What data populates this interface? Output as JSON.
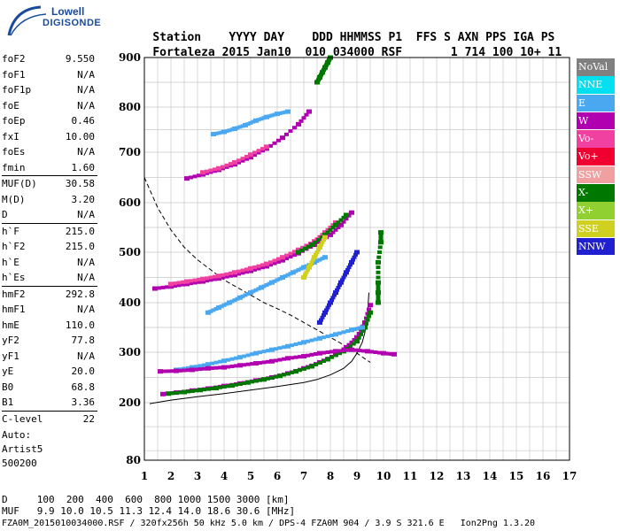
{
  "logo": {
    "line1": "Lowell",
    "line2": "DIGISONDE"
  },
  "header": {
    "labels": [
      "Station",
      "YYYY",
      "DAY",
      "DDD",
      "HHMMSS",
      "P1",
      "FFS",
      "S",
      "AXN",
      "PPS",
      "IGA",
      "PS"
    ],
    "values": [
      "Fortaleza",
      "2015",
      "Jan10",
      "010",
      "034000",
      "RSF",
      "1",
      "714",
      "100",
      "10+",
      "11"
    ]
  },
  "params": [
    {
      "name": "foF2",
      "value": "9.550"
    },
    {
      "name": "foF1",
      "value": "N/A"
    },
    {
      "name": "foF1p",
      "value": "N/A"
    },
    {
      "name": "foE",
      "value": "N/A"
    },
    {
      "name": "foEp",
      "value": "0.46"
    },
    {
      "name": "fxI",
      "value": "10.00"
    },
    {
      "name": "foEs",
      "value": "N/A"
    },
    {
      "name": "fmin",
      "value": "1.60"
    },
    {
      "name": "MUF(D)",
      "value": "30.58"
    },
    {
      "name": "M(D)",
      "value": "3.20"
    },
    {
      "name": "D",
      "value": "N/A"
    },
    {
      "name": "h`F",
      "value": "215.0"
    },
    {
      "name": "h`F2",
      "value": "215.0"
    },
    {
      "name": "h`E",
      "value": "N/A"
    },
    {
      "name": "h`Es",
      "value": "N/A"
    },
    {
      "name": "hmF2",
      "value": "292.8"
    },
    {
      "name": "hmF1",
      "value": "N/A"
    },
    {
      "name": "hmE",
      "value": "110.0"
    },
    {
      "name": "yF2",
      "value": "77.8"
    },
    {
      "name": "yF1",
      "value": "N/A"
    },
    {
      "name": "yE",
      "value": "20.0"
    },
    {
      "name": "B0",
      "value": "68.8"
    },
    {
      "name": "B1",
      "value": "3.36"
    },
    {
      "name": "C-level",
      "value": "22"
    }
  ],
  "auto": {
    "line1": "Auto:",
    "line2": "Artist5",
    "line3": "500200"
  },
  "legend": [
    {
      "label": "NoVal",
      "color": "#808080"
    },
    {
      "label": "NNE",
      "color": "#00e0f0"
    },
    {
      "label": "E",
      "color": "#4aa8f0"
    },
    {
      "label": "W",
      "color": "#b000b0"
    },
    {
      "label": "Vo-",
      "color": "#f040a0"
    },
    {
      "label": "Vo+",
      "color": "#f00030"
    },
    {
      "label": "SSW",
      "color": "#f0a0a0"
    },
    {
      "label": "X-",
      "color": "#007800"
    },
    {
      "label": "X+",
      "color": "#90d030"
    },
    {
      "label": "SSE",
      "color": "#d0d020"
    },
    {
      "label": "NNW",
      "color": "#2020d0"
    }
  ],
  "footer": {
    "d_row": "D     100  200  400  600  800 1000 1500 3000 [km]",
    "muf_row": "MUF   9.9 10.0 10.5 11.3 12.4 14.0 18.6 30.6 [MHz]",
    "info": "FZA0M_2015010034000.RSF / 320fx256h 50 kHz 5.0 km / DPS-4 FZA0M 904 / 3.9 S 321.6 E   Ion2Png 1.3.20"
  },
  "chart_data": {
    "type": "scatter",
    "xlim": [
      1,
      17
    ],
    "ylim": [
      80,
      900
    ],
    "x_ticks": [
      "1",
      "2",
      "3",
      "4",
      "5",
      "6",
      "7",
      "8",
      "9",
      "10",
      "11",
      "12",
      "13",
      "14",
      "15",
      "16",
      "17"
    ],
    "y_ticks": [
      "80",
      "200",
      "300",
      "400",
      "500",
      "600",
      "700",
      "800",
      "900"
    ],
    "series": [
      {
        "color": "#b000b0",
        "x": [
          1.7,
          2.2,
          2.8,
          3.4,
          4.0,
          4.6,
          5.2,
          5.8,
          6.4,
          7.0,
          7.6,
          8.2,
          8.6,
          9.0,
          9.3,
          9.5
        ],
        "y": [
          217,
          220,
          224,
          228,
          233,
          238,
          244,
          250,
          258,
          268,
          280,
          295,
          310,
          330,
          360,
          395
        ]
      },
      {
        "color": "#007800",
        "x": [
          1.9,
          2.5,
          3.1,
          3.7,
          4.3,
          4.9,
          5.5,
          6.1,
          6.7,
          7.3,
          7.9,
          8.5,
          9.0,
          9.3,
          9.5
        ],
        "y": [
          218,
          221,
          225,
          229,
          234,
          240,
          246,
          253,
          262,
          272,
          286,
          302,
          322,
          350,
          380
        ]
      },
      {
        "color": "#b000b0",
        "x": [
          1.4,
          2.0,
          2.6,
          3.2,
          3.8,
          4.4,
          5.0,
          5.6,
          6.2,
          6.8,
          7.4,
          8.0,
          8.4,
          8.8
        ],
        "y": [
          428,
          432,
          437,
          442,
          448,
          455,
          463,
          472,
          484,
          498,
          515,
          535,
          555,
          580
        ]
      },
      {
        "color": "#f040a0",
        "x": [
          2.0,
          2.6,
          3.2,
          3.8,
          4.4,
          5.0,
          5.6,
          6.2,
          6.8,
          7.4,
          7.8,
          8.2
        ],
        "y": [
          437,
          442,
          447,
          453,
          460,
          468,
          477,
          490,
          505,
          522,
          540,
          560
        ]
      },
      {
        "color": "#007800",
        "x": [
          6.8,
          7.3,
          7.8,
          8.2,
          8.6
        ],
        "y": [
          500,
          515,
          535,
          555,
          575
        ]
      },
      {
        "color": "#b000b0",
        "x": [
          2.6,
          3.2,
          3.8,
          4.4,
          5.0,
          5.6,
          6.2,
          6.8,
          7.2
        ],
        "y": [
          648,
          656,
          665,
          676,
          690,
          708,
          732,
          762,
          790
        ]
      },
      {
        "color": "#f040a0",
        "x": [
          3.2,
          3.8,
          4.4,
          5.0,
          5.6
        ],
        "y": [
          660,
          668,
          680,
          695,
          712
        ]
      },
      {
        "color": "#4aa8f0",
        "x": [
          2.2,
          2.8,
          3.4,
          4.0,
          4.6,
          5.2,
          5.8,
          6.4,
          7.0,
          7.6,
          8.2,
          8.8,
          9.2
        ],
        "y": [
          265,
          270,
          276,
          283,
          290,
          298,
          305,
          312,
          320,
          328,
          336,
          345,
          350
        ]
      },
      {
        "color": "#b000b0",
        "x": [
          1.6,
          2.2,
          2.8,
          3.4,
          4.0,
          4.6,
          5.2,
          5.8,
          6.4,
          7.0,
          7.6,
          8.2,
          8.8,
          9.4,
          10.0,
          10.4
        ],
        "y": [
          262,
          263,
          265,
          268,
          270,
          274,
          278,
          282,
          288,
          292,
          298,
          302,
          305,
          302,
          298,
          296
        ]
      },
      {
        "color": "#4aa8f0",
        "x": [
          3.4,
          3.8,
          4.2,
          4.6,
          5.0,
          5.4,
          5.8,
          6.2,
          6.6,
          7.0,
          7.4,
          7.8
        ],
        "y": [
          380,
          390,
          400,
          410,
          420,
          430,
          440,
          450,
          460,
          470,
          480,
          490
        ]
      },
      {
        "color": "#4aa8f0",
        "x": [
          3.6,
          4.0,
          4.4,
          4.8,
          5.2,
          5.6,
          6.0,
          6.4
        ],
        "y": [
          740,
          745,
          752,
          760,
          770,
          778,
          785,
          790
        ]
      },
      {
        "color": "#2020d0",
        "x": [
          7.6,
          7.8,
          8.0,
          8.2,
          8.4,
          8.6,
          8.8,
          9.0
        ],
        "y": [
          360,
          380,
          400,
          420,
          440,
          460,
          480,
          500
        ]
      },
      {
        "color": "#d0d020",
        "x": [
          7.0,
          7.2,
          7.4,
          7.6,
          7.8
        ],
        "y": [
          450,
          470,
          490,
          510,
          530
        ]
      },
      {
        "color": "#007800",
        "x": [
          7.5,
          7.6,
          7.7,
          7.8,
          7.9,
          8.0
        ],
        "y": [
          850,
          860,
          870,
          880,
          890,
          900
        ]
      },
      {
        "color": "#007800",
        "x": [
          9.8,
          9.8,
          9.8,
          9.8,
          9.9,
          9.9
        ],
        "y": [
          400,
          420,
          440,
          480,
          520,
          540
        ]
      }
    ],
    "dashed_line": {
      "x": [
        1.0,
        1.5,
        2.0,
        2.5,
        3.0,
        3.5,
        4.0,
        4.5,
        5.0,
        5.5,
        6.0,
        6.5,
        7.0,
        7.5,
        8.0,
        8.5,
        9.0,
        9.3,
        9.5
      ],
      "y": [
        650,
        590,
        545,
        510,
        485,
        465,
        445,
        430,
        415,
        400,
        388,
        375,
        360,
        345,
        330,
        315,
        298,
        287,
        280
      ]
    },
    "solid_line": {
      "x": [
        1.2,
        2.0,
        3.0,
        4.0,
        5.0,
        6.0,
        7.0,
        7.5,
        8.0,
        8.5,
        8.8,
        9.0,
        9.2,
        9.3,
        9.4,
        9.45
      ],
      "y": [
        198,
        205,
        212,
        218,
        225,
        232,
        240,
        246,
        255,
        268,
        282,
        298,
        320,
        340,
        380,
        420
      ]
    }
  }
}
